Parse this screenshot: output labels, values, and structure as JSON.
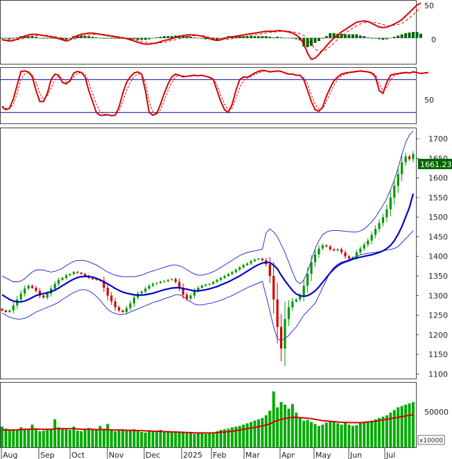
{
  "chart_data": [
    {
      "panel": "macd",
      "type": "line",
      "yticks": [
        "50",
        "0"
      ],
      "ylim": [
        -40,
        60
      ],
      "macd_line": [
        -3,
        -4,
        -5,
        -4,
        -2,
        1,
        3,
        5,
        6,
        6,
        5,
        4,
        3,
        2,
        1,
        -1,
        -3,
        -5,
        -3,
        1,
        4,
        6,
        7,
        8,
        8,
        7,
        6,
        5,
        4,
        3,
        2,
        1,
        0,
        -1,
        -3,
        -5,
        -7,
        -9,
        -10,
        -10,
        -9,
        -8,
        -6,
        -4,
        -3,
        -1,
        1,
        3,
        4,
        5,
        5,
        5,
        4,
        3,
        1,
        -1,
        -3,
        -4,
        -3,
        -1,
        1,
        2,
        3,
        4,
        5,
        6,
        7,
        8,
        9,
        10,
        11,
        11,
        11,
        12,
        12,
        11,
        10,
        8,
        5,
        0,
        -10,
        -25,
        -35,
        -33,
        -27,
        -20,
        -13,
        -6,
        0,
        5,
        10,
        14,
        18,
        22,
        26,
        27,
        28,
        27,
        24,
        21,
        18,
        17,
        18,
        20,
        23,
        26,
        30,
        36,
        42,
        48,
        54,
        57
      ],
      "signal_line": [
        -2,
        -3,
        -3,
        -3,
        -3,
        -2,
        0,
        2,
        3,
        4,
        5,
        5,
        4,
        3,
        2,
        1,
        0,
        -2,
        -3,
        -2,
        0,
        2,
        4,
        5,
        6,
        6,
        6,
        6,
        5,
        4,
        3,
        2,
        1,
        0,
        -1,
        -3,
        -4,
        -6,
        -7,
        -8,
        -9,
        -9,
        -8,
        -7,
        -6,
        -4,
        -3,
        -1,
        1,
        2,
        3,
        4,
        4,
        4,
        3,
        1,
        0,
        -1,
        -2,
        -2,
        -2,
        -1,
        0,
        1,
        2,
        3,
        4,
        5,
        6,
        7,
        8,
        9,
        10,
        10,
        11,
        11,
        11,
        10,
        9,
        7,
        4,
        -2,
        -10,
        -18,
        -22,
        -22,
        -19,
        -14,
        -8,
        -2,
        3,
        8,
        12,
        16,
        20,
        23,
        25,
        26,
        26,
        25,
        24,
        22,
        20,
        20,
        21,
        22,
        24,
        28,
        33,
        38,
        44,
        50
      ],
      "histogram": [
        -1,
        -1,
        -2,
        -1,
        1,
        3,
        3,
        3,
        3,
        2,
        0,
        -1,
        -1,
        -1,
        -1,
        -2,
        -3,
        -3,
        0,
        3,
        4,
        4,
        3,
        3,
        2,
        1,
        0,
        -1,
        -1,
        -1,
        -1,
        -1,
        -1,
        -1,
        -2,
        -2,
        -3,
        -3,
        -3,
        -2,
        0,
        1,
        2,
        3,
        3,
        3,
        4,
        4,
        3,
        3,
        2,
        1,
        0,
        -1,
        -2,
        -2,
        -3,
        -3,
        -1,
        1,
        3,
        3,
        3,
        3,
        3,
        3,
        3,
        3,
        3,
        3,
        3,
        2,
        1,
        2,
        1,
        0,
        0,
        -1,
        -2,
        -4,
        -14,
        -15,
        -13,
        -8,
        -5,
        -1,
        3,
        8,
        8,
        7,
        7,
        6,
        6,
        6,
        6,
        4,
        3,
        1,
        -1,
        -1,
        -2,
        -3,
        -2,
        0,
        2,
        4,
        6,
        8,
        9,
        10,
        10,
        7
      ]
    },
    {
      "panel": "stochastic",
      "type": "line",
      "yticks": [
        "50"
      ],
      "ylim": [
        0,
        100
      ],
      "reference_levels": [
        80,
        20
      ],
      "k_line": [
        30,
        25,
        28,
        45,
        70,
        95,
        96,
        94,
        85,
        60,
        40,
        40,
        55,
        80,
        90,
        88,
        75,
        72,
        78,
        92,
        95,
        93,
        85,
        60,
        40,
        20,
        15,
        15,
        16,
        14,
        15,
        30,
        55,
        75,
        85,
        92,
        94,
        90,
        60,
        20,
        15,
        18,
        35,
        55,
        72,
        85,
        90,
        88,
        85,
        86,
        87,
        88,
        87,
        88,
        86,
        84,
        80,
        60,
        40,
        25,
        20,
        35,
        60,
        80,
        85,
        84,
        88,
        92,
        95,
        97,
        96,
        94,
        95,
        96,
        95,
        92,
        90,
        90,
        88,
        88,
        80,
        60,
        40,
        25,
        22,
        30,
        50,
        65,
        78,
        85,
        90,
        92,
        93,
        94,
        95,
        96,
        95,
        94,
        92,
        85,
        60,
        55,
        75,
        88,
        90,
        91,
        92,
        93,
        92,
        94,
        93,
        91,
        92,
        93
      ],
      "d_line": [
        32,
        28,
        27,
        35,
        55,
        80,
        90,
        93,
        90,
        75,
        55,
        45,
        50,
        65,
        80,
        86,
        82,
        76,
        76,
        85,
        91,
        93,
        90,
        75,
        55,
        35,
        22,
        17,
        16,
        15,
        15,
        22,
        40,
        60,
        75,
        85,
        90,
        90,
        75,
        40,
        22,
        17,
        25,
        42,
        60,
        75,
        85,
        88,
        87,
        86,
        86,
        87,
        87,
        87,
        86,
        85,
        82,
        70,
        52,
        35,
        25,
        28,
        45,
        65,
        78,
        83,
        85,
        89,
        92,
        95,
        96,
        95,
        95,
        95,
        95,
        93,
        91,
        90,
        89,
        88,
        84,
        72,
        52,
        35,
        26,
        27,
        40,
        55,
        70,
        80,
        87,
        90,
        92,
        93,
        94,
        95,
        95,
        95,
        93,
        89,
        72,
        60,
        66,
        80,
        87,
        90,
        91,
        92,
        92,
        93,
        93,
        92,
        92,
        92
      ],
      "k_color": "#d40000"
    },
    {
      "panel": "price",
      "type": "candlestick",
      "y_ticks": [
        "1700",
        "1650",
        "1600",
        "1550",
        "1500",
        "1450",
        "1400",
        "1350",
        "1300",
        "1250",
        "1200",
        "1150",
        "1100"
      ],
      "ylim": [
        1090,
        1725
      ],
      "last_price_label": "1661.230",
      "close": [
        1262,
        1258,
        1262,
        1275,
        1290,
        1305,
        1318,
        1325,
        1320,
        1312,
        1300,
        1295,
        1305,
        1318,
        1330,
        1340,
        1345,
        1352,
        1355,
        1360,
        1358,
        1355,
        1350,
        1345,
        1342,
        1340,
        1338,
        1320,
        1300,
        1285,
        1270,
        1262,
        1258,
        1268,
        1280,
        1295,
        1305,
        1310,
        1318,
        1325,
        1330,
        1332,
        1335,
        1337,
        1340,
        1342,
        1335,
        1320,
        1302,
        1292,
        1300,
        1312,
        1320,
        1325,
        1328,
        1330,
        1335,
        1340,
        1345,
        1350,
        1355,
        1360,
        1366,
        1372,
        1378,
        1382,
        1388,
        1392,
        1394,
        1390,
        1380,
        1350,
        1290,
        1220,
        1165,
        1240,
        1270,
        1285,
        1290,
        1300,
        1325,
        1355,
        1385,
        1405,
        1420,
        1428,
        1425,
        1418,
        1415,
        1418,
        1410,
        1400,
        1395,
        1398,
        1410,
        1420,
        1430,
        1440,
        1455,
        1470,
        1485,
        1500,
        1520,
        1550,
        1580,
        1610,
        1640,
        1655,
        1648,
        1661
      ],
      "ma20": [
        1302,
        1296,
        1290,
        1286,
        1284,
        1284,
        1286,
        1290,
        1295,
        1300,
        1303,
        1305,
        1307,
        1310,
        1314,
        1319,
        1325,
        1331,
        1337,
        1342,
        1346,
        1348,
        1349,
        1349,
        1347,
        1344,
        1340,
        1335,
        1330,
        1324,
        1318,
        1313,
        1309,
        1306,
        1304,
        1302,
        1301,
        1301,
        1302,
        1304,
        1306,
        1309,
        1312,
        1315,
        1317,
        1319,
        1320,
        1320,
        1318,
        1316,
        1314,
        1312,
        1312,
        1313,
        1315,
        1317,
        1320,
        1323,
        1327,
        1331,
        1335,
        1340,
        1345,
        1350,
        1356,
        1362,
        1368,
        1374,
        1379,
        1383,
        1385,
        1384,
        1378,
        1368,
        1352,
        1338,
        1325,
        1313,
        1304,
        1300,
        1298,
        1300,
        1305,
        1312,
        1322,
        1334,
        1346,
        1358,
        1368,
        1376,
        1382,
        1386,
        1389,
        1393,
        1396,
        1398,
        1400,
        1402,
        1404,
        1407,
        1410,
        1414,
        1420,
        1428,
        1440,
        1456,
        1476,
        1500,
        1525,
        1560
      ],
      "upper_band": [
        1350,
        1345,
        1340,
        1335,
        1335,
        1337,
        1343,
        1352,
        1360,
        1365,
        1366,
        1365,
        1362,
        1360,
        1362,
        1365,
        1370,
        1376,
        1382,
        1387,
        1390,
        1390,
        1389,
        1386,
        1382,
        1378,
        1372,
        1366,
        1360,
        1356,
        1352,
        1350,
        1348,
        1348,
        1348,
        1348,
        1350,
        1352,
        1356,
        1360,
        1363,
        1366,
        1369,
        1372,
        1375,
        1378,
        1378,
        1376,
        1372,
        1366,
        1360,
        1355,
        1352,
        1352,
        1354,
        1357,
        1361,
        1366,
        1372,
        1378,
        1384,
        1390,
        1396,
        1402,
        1406,
        1410,
        1412,
        1414,
        1416,
        1418,
        1460,
        1470,
        1462,
        1450,
        1430,
        1410,
        1385,
        1360,
        1338,
        1330,
        1340,
        1360,
        1390,
        1420,
        1440,
        1455,
        1462,
        1465,
        1466,
        1466,
        1465,
        1464,
        1463,
        1462,
        1462,
        1465,
        1470,
        1478,
        1488,
        1500,
        1515,
        1530,
        1548,
        1570,
        1595,
        1625,
        1660,
        1690,
        1710,
        1720
      ],
      "lower_band": [
        1255,
        1250,
        1245,
        1242,
        1240,
        1240,
        1242,
        1246,
        1252,
        1258,
        1262,
        1266,
        1270,
        1274,
        1278,
        1283,
        1290,
        1296,
        1302,
        1308,
        1312,
        1315,
        1315,
        1312,
        1306,
        1298,
        1288,
        1276,
        1265,
        1258,
        1254,
        1252,
        1252,
        1254,
        1258,
        1262,
        1266,
        1270,
        1274,
        1278,
        1282,
        1285,
        1288,
        1292,
        1295,
        1298,
        1302,
        1302,
        1298,
        1290,
        1284,
        1278,
        1276,
        1276,
        1278,
        1280,
        1282,
        1285,
        1288,
        1292,
        1296,
        1300,
        1305,
        1310,
        1315,
        1320,
        1324,
        1328,
        1332,
        1336,
        1300,
        1260,
        1220,
        1190,
        1185,
        1190,
        1198,
        1210,
        1220,
        1235,
        1250,
        1260,
        1270,
        1280,
        1300,
        1320,
        1340,
        1360,
        1372,
        1380,
        1385,
        1388,
        1392,
        1396,
        1400,
        1404,
        1406,
        1408,
        1409,
        1410,
        1412,
        1414,
        1416,
        1418,
        1420,
        1425,
        1435,
        1445,
        1455,
        1465
      ],
      "colors": {
        "up": "#009900",
        "down": "#d40000",
        "ma": "#0000cc",
        "band": "#1a1acc"
      }
    },
    {
      "panel": "volume",
      "type": "bar",
      "y_ticks": [
        "50000"
      ],
      "ylim": [
        0,
        96000
      ],
      "multiplier_label": "x10000",
      "values": [
        31000,
        28000,
        26000,
        27000,
        25000,
        30000,
        28000,
        26000,
        34000,
        27000,
        24000,
        25000,
        26000,
        28000,
        42000,
        30000,
        29000,
        27000,
        26000,
        31000,
        25000,
        24000,
        26000,
        29000,
        27000,
        26000,
        32000,
        28000,
        35000,
        26000,
        24000,
        25000,
        27000,
        26000,
        25000,
        27000,
        24000,
        23000,
        22000,
        24000,
        23000,
        25000,
        26000,
        24000,
        23000,
        22000,
        24000,
        22000,
        23000,
        21000,
        22000,
        20000,
        21000,
        22000,
        20000,
        21000,
        22000,
        24000,
        26000,
        27000,
        28000,
        30000,
        31000,
        32000,
        34000,
        36000,
        38000,
        40000,
        42000,
        44000,
        48000,
        55000,
        84000,
        60000,
        68000,
        64000,
        58000,
        65000,
        52000,
        45000,
        40000,
        41000,
        38000,
        35000,
        32000,
        34000,
        37000,
        38000,
        39000,
        36000,
        34000,
        37000,
        34000,
        32000,
        33000,
        36000,
        38000,
        39000,
        40000,
        42000,
        44000,
        46000,
        48000,
        52000,
        56000,
        60000,
        62000,
        64000,
        66000,
        68000
      ],
      "ma_values": [
        26000,
        26000,
        26000,
        26000,
        26000,
        26500,
        27000,
        27000,
        27500,
        27500,
        27000,
        27000,
        27000,
        27000,
        27500,
        28000,
        28000,
        28000,
        28000,
        28000,
        27500,
        27000,
        27000,
        27000,
        27000,
        26500,
        26500,
        26500,
        26500,
        26000,
        26000,
        26000,
        26000,
        25500,
        25500,
        25500,
        25000,
        25000,
        24500,
        24500,
        24000,
        24000,
        24000,
        23500,
        23500,
        23000,
        23000,
        22500,
        22500,
        22000,
        22000,
        21500,
        21500,
        21500,
        21500,
        21500,
        21500,
        22000,
        22500,
        23000,
        23500,
        24000,
        25000,
        26000,
        27000,
        28000,
        29000,
        30000,
        31000,
        32000,
        33500,
        35000,
        38000,
        40000,
        42000,
        43000,
        44000,
        45000,
        45000,
        44500,
        44000,
        43500,
        43000,
        42000,
        41000,
        40000,
        39500,
        39000,
        38500,
        38000,
        37500,
        37500,
        37000,
        37000,
        37000,
        37000,
        37500,
        38000,
        38500,
        39000,
        40000,
        41000,
        42000,
        43000,
        44000,
        45000,
        46000,
        47000,
        48000,
        49000
      ],
      "colors": {
        "bar": "#00aa00",
        "ma": "#d40000"
      }
    }
  ],
  "x_axis": {
    "months": [
      "Aug",
      "Sep",
      "Oct",
      "Nov",
      "Dec",
      "2025",
      "Feb",
      "Mar",
      "Apr",
      "May",
      "Jun",
      "Jul"
    ]
  }
}
